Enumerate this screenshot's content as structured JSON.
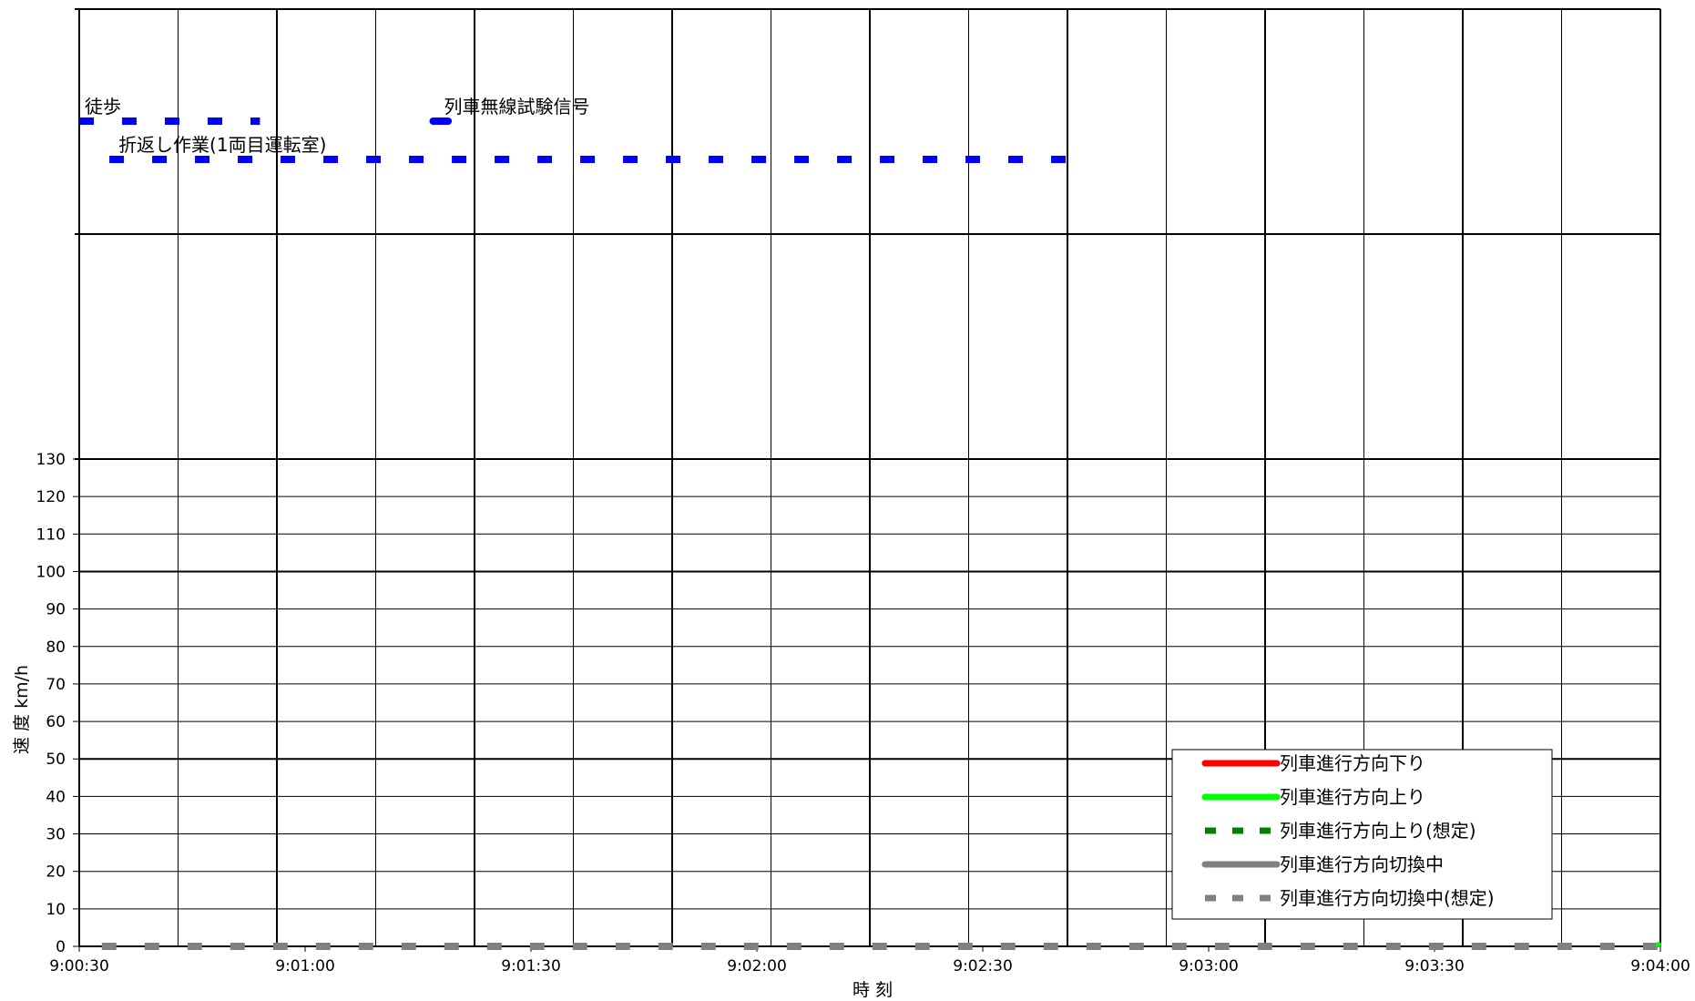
{
  "chart_data": {
    "type": "line",
    "xlabel": "時 刻",
    "ylabel": "速 度  km/h",
    "x_range": [
      "9:00:30",
      "9:04:00"
    ],
    "x_ticks": [
      "9:00:30",
      "9:01:00",
      "9:01:30",
      "9:02:00",
      "9:02:30",
      "9:03:00",
      "9:03:30",
      "9:04:00"
    ],
    "ylim": [
      0,
      130
    ],
    "y_ticks": [
      0,
      10,
      20,
      30,
      40,
      50,
      60,
      70,
      80,
      90,
      100,
      110,
      120,
      130
    ],
    "grid": true,
    "legend_position": "bottom-right",
    "legend": [
      {
        "label": "列車進行方向下り",
        "color": "#ff0000",
        "style": "solid"
      },
      {
        "label": "列車進行方向上り",
        "color": "#00ff00",
        "style": "solid"
      },
      {
        "label": "列車進行方向上り(想定)",
        "color": "#008000",
        "style": "dashed"
      },
      {
        "label": "列車進行方向切換中",
        "color": "#808080",
        "style": "solid"
      },
      {
        "label": "列車進行方向切換中(想定)",
        "color": "#808080",
        "style": "dashed"
      }
    ],
    "series": [
      {
        "name": "列車進行方向切換中(想定)",
        "color": "#808080",
        "style": "dashed",
        "x": [
          "9:00:33",
          "9:04:00"
        ],
        "y": [
          0,
          0
        ]
      },
      {
        "name": "列車進行方向上り",
        "color": "#00ff00",
        "style": "solid",
        "x": [
          "9:04:00"
        ],
        "y": [
          0
        ]
      }
    ],
    "annotations": [
      {
        "text": "徒歩",
        "start": "9:00:30",
        "end": "9:00:54",
        "color": "#0000ff",
        "style": "dashed"
      },
      {
        "text": "折返し作業(1両目運転室)",
        "start": "9:00:34",
        "end": "9:02:44",
        "color": "#0000ff",
        "style": "dashed"
      },
      {
        "text": "列車無線試験信号",
        "start": "9:01:17",
        "end": "9:01:19",
        "color": "#0000ff",
        "style": "solid"
      }
    ]
  }
}
